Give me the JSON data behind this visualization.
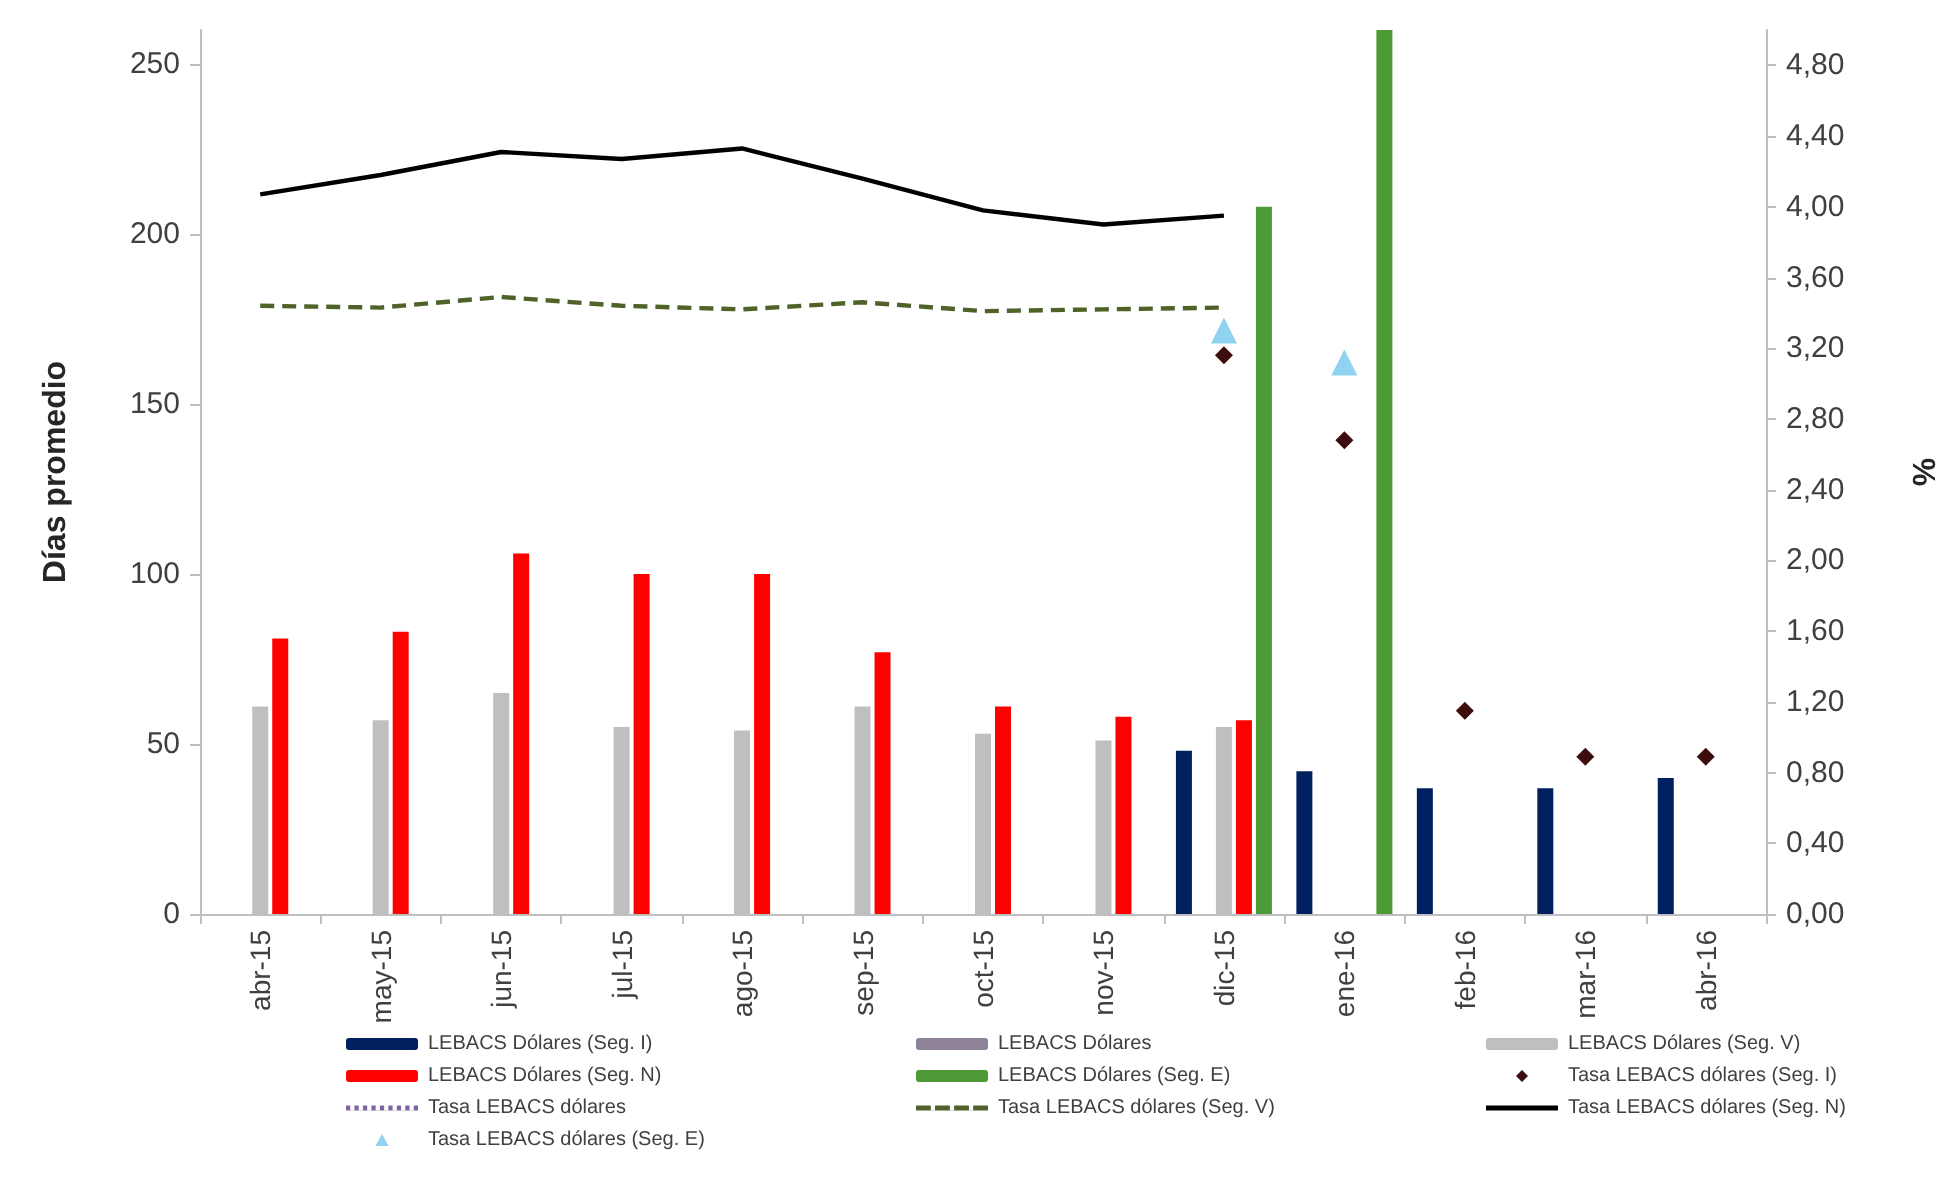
{
  "chart_data": {
    "type": "bar",
    "categories": [
      "abr-15",
      "may-15",
      "jun-15",
      "jul-15",
      "ago-15",
      "sep-15",
      "oct-15",
      "nov-15",
      "dic-15",
      "ene-16",
      "feb-16",
      "mar-16",
      "abr-16"
    ],
    "ylabel": "Días promedio",
    "y2label": "%",
    "ylim": [
      0,
      260
    ],
    "yticks": [
      0,
      50,
      100,
      150,
      200,
      250
    ],
    "y2lim": [
      0,
      5
    ],
    "y2ticks": [
      {
        "value": 0,
        "label": "0,00"
      },
      {
        "value": 0.4,
        "label": "0,40"
      },
      {
        "value": 0.8,
        "label": "0,80"
      },
      {
        "value": 1.2,
        "label": "1,20"
      },
      {
        "value": 1.6,
        "label": "1,60"
      },
      {
        "value": 2.0,
        "label": "2,00"
      },
      {
        "value": 2.4,
        "label": "2,40"
      },
      {
        "value": 2.8,
        "label": "2,80"
      },
      {
        "value": 3.2,
        "label": "3,20"
      },
      {
        "value": 3.6,
        "label": "3,60"
      },
      {
        "value": 4.0,
        "label": "4,00"
      },
      {
        "value": 4.4,
        "label": "4,40"
      },
      {
        "value": 4.8,
        "label": "4,80"
      }
    ],
    "grid": false,
    "legend": "bottom",
    "series": [
      {
        "name": "LEBACS Dólares (Seg. I)",
        "color": "#002060",
        "values": [
          null,
          null,
          null,
          null,
          null,
          null,
          null,
          null,
          48,
          42,
          37,
          37,
          40
        ]
      },
      {
        "name": "LEBACS Dólares",
        "color": "#8e8299",
        "values": [
          null,
          null,
          null,
          null,
          null,
          null,
          null,
          null,
          null,
          null,
          null,
          null,
          null
        ]
      },
      {
        "name": "LEBACS Dólares (Seg. V)",
        "color": "#bfbfbf",
        "values": [
          61,
          57,
          65,
          55,
          54,
          61,
          53,
          51,
          55,
          null,
          null,
          null,
          null
        ]
      },
      {
        "name": "LEBACS Dólares (Seg. N)",
        "color": "#ff0000",
        "values": [
          81,
          83,
          106,
          100,
          100,
          77,
          61,
          58,
          57,
          null,
          null,
          null,
          null
        ]
      },
      {
        "name": "LEBACS Dólares (Seg. E)",
        "color": "#4e9a36",
        "values": [
          null,
          null,
          null,
          null,
          null,
          null,
          null,
          null,
          208,
          260,
          null,
          null,
          null
        ]
      },
      {
        "name": "Tasa LEBACS dólares (Seg. I)",
        "type": "scatter",
        "axis": "y2",
        "marker": "diamond",
        "color": "#3d0c0c",
        "values": [
          null,
          null,
          null,
          null,
          null,
          null,
          null,
          null,
          3.16,
          2.68,
          1.15,
          0.89,
          0.89
        ]
      },
      {
        "name": "Tasa LEBACS dólares",
        "type": "line",
        "axis": "y2",
        "line_style": "dotted",
        "color": "#8064a2",
        "values": [
          null,
          null,
          null,
          null,
          null,
          null,
          null,
          null,
          null,
          null,
          null,
          null,
          null
        ]
      },
      {
        "name": "Tasa LEBACS dólares (Seg. V)",
        "type": "line",
        "axis": "y2",
        "line_style": "dashed",
        "color": "#4f6228",
        "values": [
          3.44,
          3.43,
          3.49,
          3.44,
          3.42,
          3.46,
          3.41,
          3.42,
          3.43,
          null,
          null,
          null,
          null
        ]
      },
      {
        "name": "Tasa LEBACS dólares (Seg. N)",
        "type": "line",
        "axis": "y2",
        "line_style": "solid",
        "color": "#000000",
        "values": [
          4.07,
          4.18,
          4.31,
          4.27,
          4.33,
          4.16,
          3.98,
          3.9,
          3.95,
          null,
          null,
          null,
          null
        ]
      },
      {
        "name": "Tasa LEBACS dólares (Seg. E)",
        "type": "scatter",
        "axis": "y2",
        "marker": "triangle",
        "color": "#8fd3f0",
        "values": [
          null,
          null,
          null,
          null,
          null,
          null,
          null,
          null,
          3.3,
          3.12,
          null,
          null,
          null
        ]
      }
    ]
  }
}
